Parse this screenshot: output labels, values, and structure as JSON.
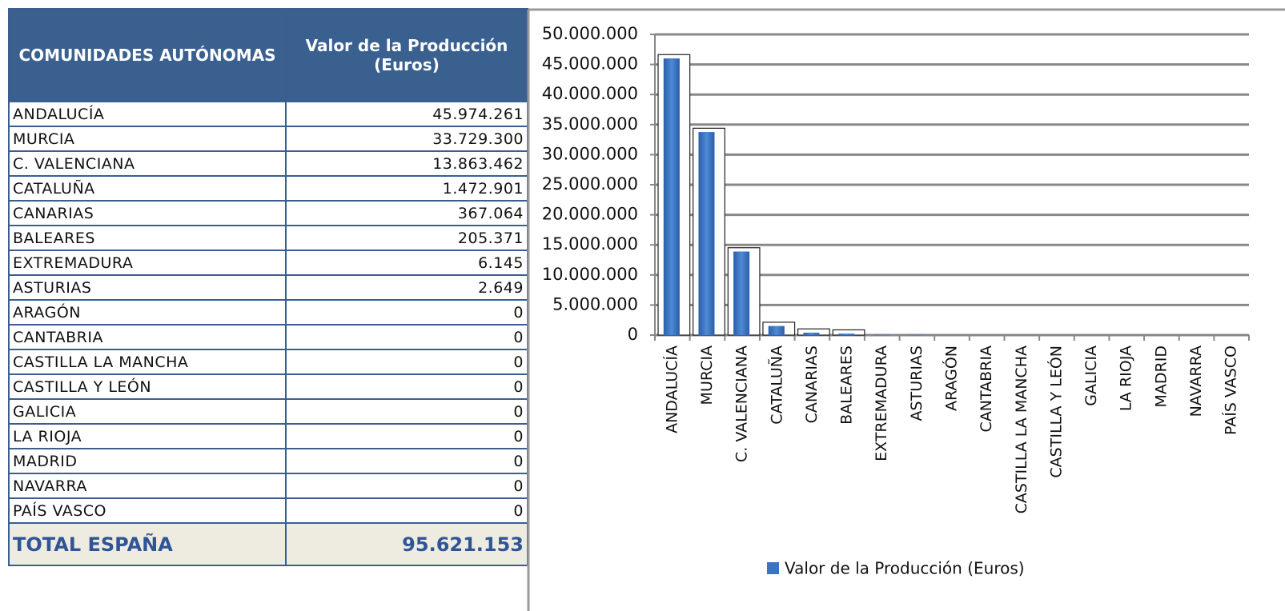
{
  "table": {
    "header": [
      "COMUNIDADES AUTÓNOMAS",
      "Valor de la Producción (Euros)"
    ],
    "rows": [
      [
        "ANDALUCÍA",
        "45.974.261"
      ],
      [
        "MURCIA",
        "33.729.300"
      ],
      [
        "C. VALENCIANA",
        "13.863.462"
      ],
      [
        "CATALUÑA",
        "1.472.901"
      ],
      [
        "CANARIAS",
        "367.064"
      ],
      [
        "BALEARES",
        "205.371"
      ],
      [
        "EXTREMADURA",
        "6.145"
      ],
      [
        "ASTURIAS",
        "2.649"
      ],
      [
        "ARAGÓN",
        "0"
      ],
      [
        "CANTABRIA",
        "0"
      ],
      [
        "CASTILLA LA MANCHA",
        "0"
      ],
      [
        "CASTILLA Y LEÓN",
        "0"
      ],
      [
        "GALICIA",
        "0"
      ],
      [
        "LA RIOJA",
        "0"
      ],
      [
        "MADRID",
        "0"
      ],
      [
        "NAVARRA",
        "0"
      ],
      [
        "PAÍS VASCO",
        "0"
      ]
    ],
    "total": [
      "TOTAL ESPAÑA",
      "95.621.153"
    ]
  },
  "chart_data": {
    "type": "bar",
    "categories": [
      "ANDALUCÍA",
      "MURCIA",
      "C. VALENCIANA",
      "CATALUÑA",
      "CANARIAS",
      "BALEARES",
      "EXTREMADURA",
      "ASTURIAS",
      "ARAGÓN",
      "CANTABRIA",
      "CASTILLA LA MANCHA",
      "CASTILLA Y LEÓN",
      "GALICIA",
      "LA RIOJA",
      "MADRID",
      "NAVARRA",
      "PAÍS VASCO"
    ],
    "series": [
      {
        "name": "Valor de la Producción (Euros)",
        "color": "#3a74c4",
        "values": [
          45974261,
          33729300,
          13863462,
          1472901,
          367064,
          205371,
          6145,
          2649,
          0,
          0,
          0,
          0,
          0,
          0,
          0,
          0,
          0
        ]
      }
    ],
    "ylim": [
      0,
      50000000
    ],
    "yticks": [
      0,
      {
        "value": 5000000,
        "label": "5.000.000"
      },
      {
        "value": 10000000,
        "label": "10.000.000"
      },
      {
        "value": 15000000,
        "label": "15.000.000"
      },
      {
        "value": 20000000,
        "label": "20.000.000"
      },
      {
        "value": 25000000,
        "label": "25.000.000"
      },
      {
        "value": 30000000,
        "label": "30.000.000"
      },
      {
        "value": 35000000,
        "label": "35.000.000"
      },
      {
        "value": 40000000,
        "label": "40.000.000"
      },
      {
        "value": 45000000,
        "label": "45.000.000"
      },
      {
        "value": 50000000,
        "label": "50.000.000"
      }
    ],
    "grid": true,
    "legend": "bottom"
  }
}
